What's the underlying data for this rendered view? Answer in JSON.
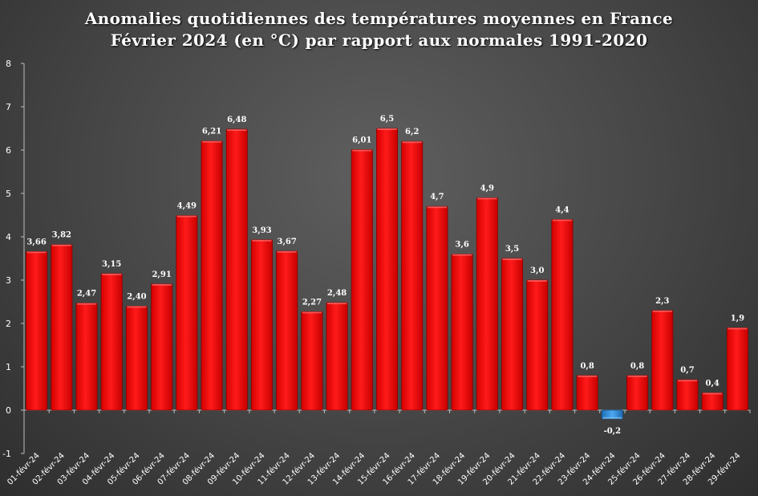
{
  "chart_title": "Anomalies quotidiennes des températures moyennes en France",
  "chart_subtitle": "Février 2024 (en °C) par rapport aux normales 1991-2020",
  "colors": {
    "positive_bar": "#ff0000",
    "negative_bar": "#2f8fdc",
    "axis": "#bdbdbd",
    "text": "#ffffff"
  },
  "chart_data": {
    "type": "bar",
    "title": "Anomalies quotidiennes des températures moyennes en France",
    "subtitle": "Février 2024 (en °C) par rapport aux normales 1991-2020",
    "xlabel": "",
    "ylabel": "",
    "ylim": [
      -1,
      8
    ],
    "yticks": [
      -1,
      0,
      1,
      2,
      3,
      4,
      5,
      6,
      7,
      8
    ],
    "grid": false,
    "categories": [
      "01-févr-24",
      "02-févr-24",
      "03-févr-24",
      "04-févr-24",
      "05-févr-24",
      "06-févr-24",
      "07-févr-24",
      "08-févr-24",
      "09-févr-24",
      "10-févr-24",
      "11-févr-24",
      "12-févr-24",
      "13-févr-24",
      "14-févr-24",
      "15-févr-24",
      "16-févr-24",
      "17-févr-24",
      "18-févr-24",
      "19-févr-24",
      "20-févr-24",
      "21-févr-24",
      "22-févr-24",
      "23-févr-24",
      "24-févr-24",
      "25-févr-24",
      "26-févr-24",
      "27-févr-24",
      "28-févr-24",
      "29-févr-24"
    ],
    "values": [
      3.66,
      3.82,
      2.47,
      3.15,
      2.4,
      2.91,
      4.49,
      6.21,
      6.48,
      3.93,
      3.67,
      2.27,
      2.48,
      6.01,
      6.5,
      6.2,
      4.7,
      3.6,
      4.9,
      3.5,
      3.0,
      4.4,
      0.8,
      -0.2,
      0.8,
      2.3,
      0.7,
      0.4,
      1.9
    ],
    "data_labels": [
      "3,66",
      "3,82",
      "2,47",
      "3,15",
      "2,40",
      "2,91",
      "4,49",
      "6,21",
      "6,48",
      "3,93",
      "3,67",
      "2,27",
      "2,48",
      "6,01",
      "6,5",
      "6,2",
      "4,7",
      "3,6",
      "4,9",
      "3,5",
      "3,0",
      "4,4",
      "0,8",
      "-0,2",
      "0,8",
      "2,3",
      "0,7",
      "0,4",
      "1,9"
    ]
  }
}
